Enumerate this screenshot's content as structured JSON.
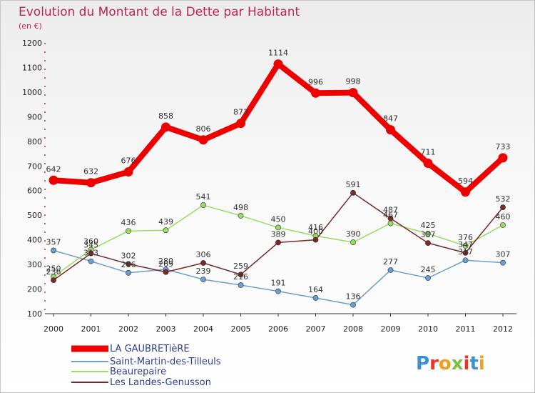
{
  "chart_data": {
    "type": "line",
    "title": "Evolution du Montant de la Dette par Habitant",
    "subtitle": "(en €)",
    "xlabel": "",
    "ylabel": "",
    "categories": [
      "2000",
      "2001",
      "2002",
      "2003",
      "2004",
      "2005",
      "2006",
      "2007",
      "2008",
      "2009",
      "2010",
      "2011",
      "2012"
    ],
    "ylim": [
      100,
      1200
    ],
    "yticks": [
      100,
      200,
      300,
      400,
      500,
      600,
      700,
      800,
      900,
      1000,
      1100,
      1200
    ],
    "grid": false,
    "legend_position": "bottom-left",
    "series": [
      {
        "name": "LA GAUBRETièRE",
        "color": "#ee0000",
        "values": [
          642,
          632,
          676,
          858,
          806,
          873,
          1114,
          996,
          998,
          847,
          711,
          594,
          733
        ]
      },
      {
        "name": "Saint-Martin-des-Tilleuls",
        "color": "#6a9fd0",
        "values": [
          357,
          313,
          266,
          280,
          239,
          216,
          191,
          164,
          136,
          277,
          245,
          317,
          307
        ]
      },
      {
        "name": "Beaurepaire",
        "color": "#99dd66",
        "values": [
          250,
          360,
          436,
          439,
          541,
          498,
          450,
          416,
          390,
          467,
          425,
          376,
          460
        ]
      },
      {
        "name": "Les Landes-Genusson",
        "color": "#7a2a2a",
        "values": [
          236,
          345,
          302,
          269,
          306,
          259,
          389,
          400,
          591,
          487,
          387,
          347,
          532
        ]
      }
    ]
  },
  "logo": {
    "text": "Proxiti",
    "letter_colors": [
      "#3b8fd6",
      "#e7352b",
      "#f0a020",
      "#7bc043",
      "#e7352b",
      "#3b8fd6",
      "#f0a020"
    ]
  }
}
